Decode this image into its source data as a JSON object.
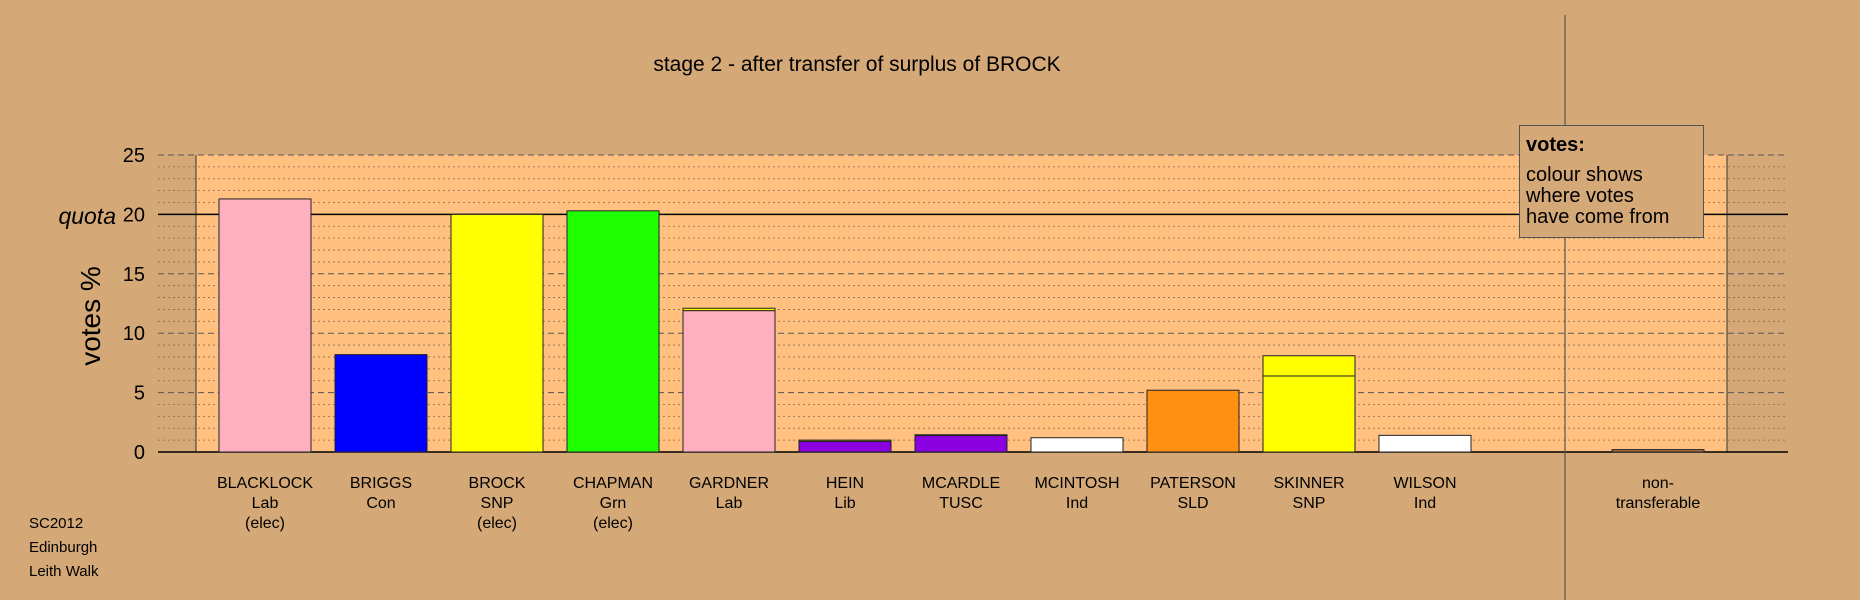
{
  "chart_data": {
    "type": "bar",
    "title": "stage 2 - after transfer of surplus of BROCK",
    "ylabel": "votes %",
    "ylim": [
      0,
      25
    ],
    "yticks": [
      0,
      5,
      10,
      15,
      20,
      25
    ],
    "quota": 20,
    "quota_label": "quota",
    "grid": true,
    "candidates": [
      {
        "name": "BLACKLOCK",
        "party": "Lab",
        "status": "(elec)",
        "segments": [
          {
            "value": 21.3,
            "color": "#ffb0c0"
          }
        ]
      },
      {
        "name": "BRIGGS",
        "party": "Con",
        "status": "",
        "segments": [
          {
            "value": 8.2,
            "color": "#0000ff"
          }
        ]
      },
      {
        "name": "BROCK",
        "party": "SNP",
        "status": "(elec)",
        "segments": [
          {
            "value": 20.0,
            "color": "#ffff00"
          }
        ]
      },
      {
        "name": "CHAPMAN",
        "party": "Grn",
        "status": "(elec)",
        "segments": [
          {
            "value": 20.3,
            "color": "#1eff00"
          }
        ]
      },
      {
        "name": "GARDNER",
        "party": "Lab",
        "status": "",
        "segments": [
          {
            "value": 11.9,
            "color": "#ffb0c0"
          },
          {
            "value": 0.2,
            "color": "#ffff00"
          }
        ]
      },
      {
        "name": "HEIN",
        "party": "Lib",
        "status": "",
        "segments": [
          {
            "value": 0.9,
            "color": "#8a00e0"
          },
          {
            "value": 0.1,
            "color": "#ffff00"
          }
        ]
      },
      {
        "name": "MCARDLE",
        "party": "TUSC",
        "status": "",
        "segments": [
          {
            "value": 1.4,
            "color": "#8a00e0"
          },
          {
            "value": 0.05,
            "color": "#ffff00"
          }
        ]
      },
      {
        "name": "MCINTOSH",
        "party": "Ind",
        "status": "",
        "segments": [
          {
            "value": 1.2,
            "color": "#ffffff"
          }
        ]
      },
      {
        "name": "PATERSON",
        "party": "SLD",
        "status": "",
        "segments": [
          {
            "value": 5.2,
            "color": "#ff9010"
          }
        ]
      },
      {
        "name": "SKINNER",
        "party": "SNP",
        "status": "",
        "segments": [
          {
            "value": 6.4,
            "color": "#ffff00"
          },
          {
            "value": 1.7,
            "color": "#ffff00"
          }
        ]
      },
      {
        "name": "WILSON",
        "party": "Ind",
        "status": "",
        "segments": [
          {
            "value": 1.4,
            "color": "#ffffff"
          }
        ]
      }
    ],
    "nontransferable": {
      "label_line1": "non-",
      "label_line2": "transferable",
      "value": 0.2,
      "color": "#b07040"
    }
  },
  "legend": {
    "title": "votes:",
    "lines": [
      "colour shows",
      "where votes",
      "have come from"
    ]
  },
  "footnote": {
    "line1": "SC2012",
    "line2": "Edinburgh",
    "line3": "Leith Walk"
  },
  "colors": {
    "background": "#d4a877",
    "plot_area": "#ffc080",
    "plot_area_outer": "#d4a877"
  }
}
